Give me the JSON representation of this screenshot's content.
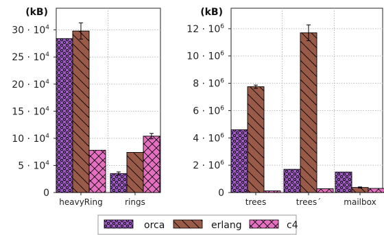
{
  "colors": {
    "orca": "#9b59c0",
    "erlang": "#9a5a48",
    "c4": "#e56fc0",
    "grid": "#b8b8b8",
    "axis": "#222222"
  },
  "legend": [
    {
      "name": "orca",
      "pattern": "dots"
    },
    {
      "name": "erlang",
      "pattern": "diag"
    },
    {
      "name": "c4",
      "pattern": "cross"
    }
  ],
  "chart_data": [
    {
      "type": "bar",
      "ylabel": "(kB)",
      "ylim": [
        0,
        340000
      ],
      "yticks": [
        0,
        50000,
        100000,
        150000,
        200000,
        250000,
        300000
      ],
      "ytick_labels": [
        {
          "base": "0",
          "exp": ""
        },
        {
          "base": "5 · 10",
          "exp": "4"
        },
        {
          "base": "10 · 10",
          "exp": "4"
        },
        {
          "base": "15 · 10",
          "exp": "4"
        },
        {
          "base": "20 · 10",
          "exp": "4"
        },
        {
          "base": "25 · 10",
          "exp": "4"
        },
        {
          "base": "30 · 10",
          "exp": "4"
        }
      ],
      "categories": [
        "heavyRing",
        "rings"
      ],
      "series": [
        {
          "name": "orca",
          "values": [
            284000,
            35000
          ],
          "err": [
            0,
            3000
          ]
        },
        {
          "name": "erlang",
          "values": [
            298000,
            74000
          ],
          "err": [
            15000,
            0
          ]
        },
        {
          "name": "c4",
          "values": [
            78000,
            104000
          ],
          "err": [
            0,
            5000
          ]
        }
      ],
      "grid": true
    },
    {
      "type": "bar",
      "ylabel": "(kB)",
      "ylim": [
        0,
        13500000
      ],
      "yticks": [
        0,
        2000000,
        4000000,
        6000000,
        8000000,
        10000000,
        12000000
      ],
      "ytick_labels": [
        {
          "base": "0",
          "exp": ""
        },
        {
          "base": "2 · 10",
          "exp": "6"
        },
        {
          "base": "4 · 10",
          "exp": "6"
        },
        {
          "base": "6 · 10",
          "exp": "6"
        },
        {
          "base": "8 · 10",
          "exp": "6"
        },
        {
          "base": "10 · 10",
          "exp": "6"
        },
        {
          "base": "12 · 10",
          "exp": "6"
        }
      ],
      "categories": [
        "trees",
        "trees´",
        "mailbox"
      ],
      "series": [
        {
          "name": "orca",
          "values": [
            4600000,
            1700000,
            1500000
          ],
          "err": [
            0,
            0,
            0
          ]
        },
        {
          "name": "erlang",
          "values": [
            7750000,
            11700000,
            370000
          ],
          "err": [
            120000,
            580000,
            40000
          ]
        },
        {
          "name": "c4",
          "values": [
            120000,
            280000,
            300000
          ],
          "err": [
            0,
            0,
            0
          ]
        }
      ],
      "grid": true
    }
  ]
}
